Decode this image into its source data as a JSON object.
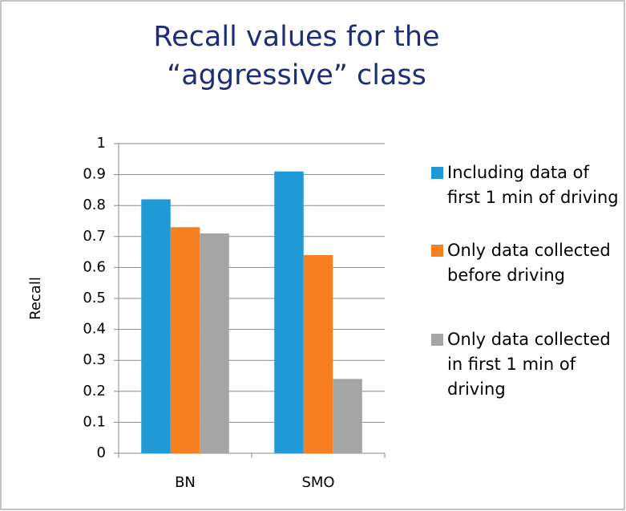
{
  "chart_data": {
    "type": "bar",
    "title": "Recall values for the “aggressive” class",
    "y_label": "Recall",
    "categories": [
      "BN",
      "SMO"
    ],
    "series": [
      {
        "name": "Including data of first 1 min of driving",
        "color": "#1f9ad6",
        "values": [
          0.82,
          0.91
        ]
      },
      {
        "name": "Only data collected before driving",
        "color": "#f57f21",
        "values": [
          0.73,
          0.64
        ]
      },
      {
        "name": "Only data collected in first 1 min of driving",
        "color": "#a5a5a5",
        "values": [
          0.71,
          0.24
        ]
      }
    ],
    "ylim": [
      0,
      1
    ],
    "yticks": [
      0,
      0.1,
      0.2,
      0.3,
      0.4,
      0.5,
      0.6,
      0.7,
      0.8,
      0.9,
      1
    ],
    "grid": true,
    "legend": "right"
  }
}
